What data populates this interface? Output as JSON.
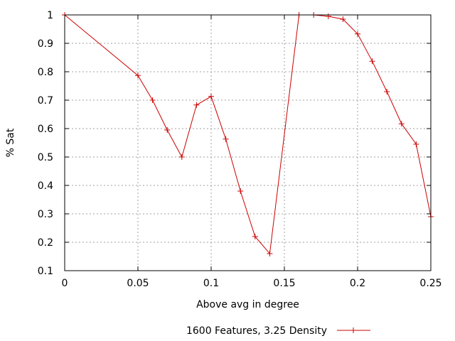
{
  "chart_data": {
    "type": "line",
    "title": "",
    "xlabel": "Above avg in degree",
    "ylabel": "% Sat",
    "xlim": [
      0,
      0.25
    ],
    "ylim": [
      0.1,
      1
    ],
    "xticks": [
      0,
      0.05,
      0.1,
      0.15,
      0.2,
      0.25
    ],
    "xtick_labels": [
      "0",
      "0.05",
      "0.1",
      "0.15",
      "0.2",
      "0.25"
    ],
    "yticks": [
      0.1,
      0.2,
      0.3,
      0.4,
      0.5,
      0.6,
      0.7,
      0.8,
      0.9,
      1
    ],
    "ytick_labels": [
      "0.1",
      "0.2",
      "0.3",
      "0.4",
      "0.5",
      "0.6",
      "0.7",
      "0.8",
      "0.9",
      "1"
    ],
    "grid": true,
    "legend_position": "bottom",
    "series": [
      {
        "name": "1600 Features, 3.25 Density",
        "color": "#cc0000",
        "marker": "plus",
        "x": [
          0,
          0.05,
          0.06,
          0.07,
          0.08,
          0.09,
          0.1,
          0.11,
          0.12,
          0.13,
          0.14,
          0.16,
          0.17,
          0.18,
          0.19,
          0.2,
          0.21,
          0.22,
          0.23,
          0.24,
          0.25
        ],
        "y": [
          1.0,
          0.787,
          0.7,
          0.595,
          0.5,
          0.683,
          0.713,
          0.563,
          0.38,
          0.22,
          0.16,
          1.0,
          1.0,
          0.995,
          0.985,
          0.933,
          0.837,
          0.73,
          0.617,
          0.545,
          0.29
        ]
      }
    ]
  }
}
